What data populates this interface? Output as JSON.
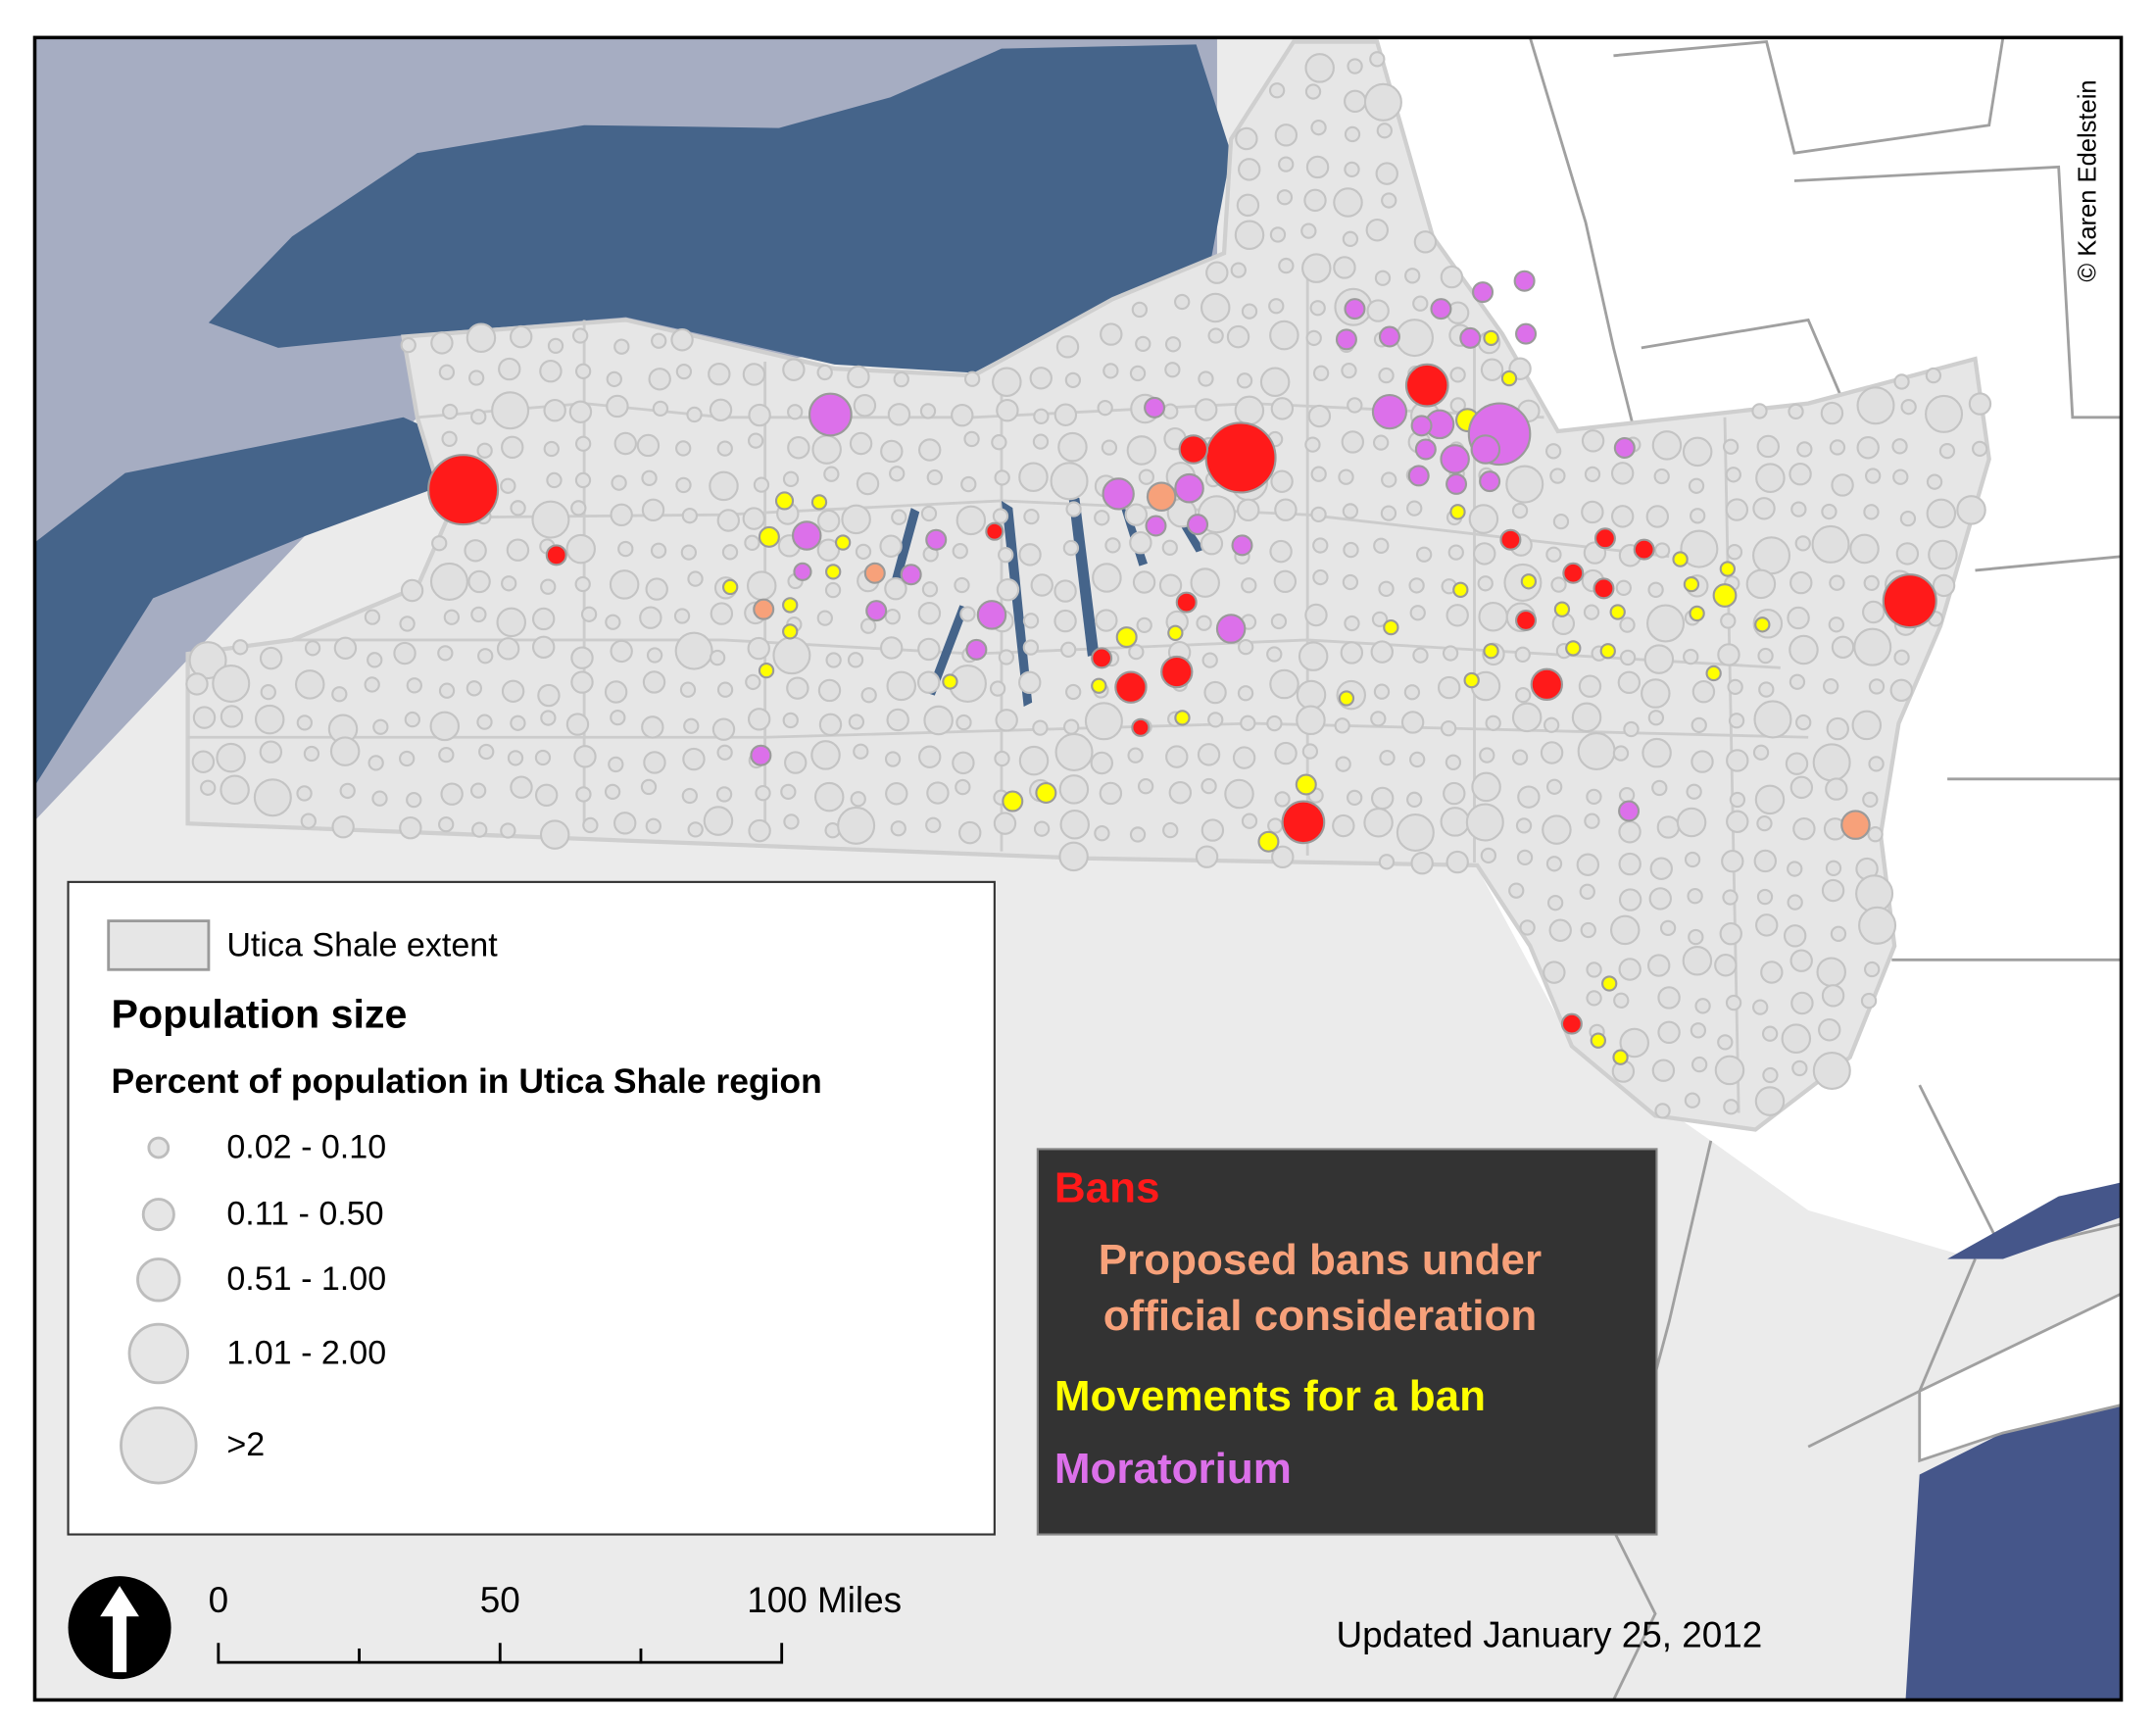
{
  "legend": {
    "shale_label": "Utica Shale extent",
    "title": "Population size",
    "subtitle": "Percent of population in Utica Shale region",
    "classes": [
      "0.02 - 0.10",
      "0.11 - 0.50",
      "0.51 - 1.00",
      "1.01 - 2.00",
      ">2"
    ]
  },
  "status_legend": [
    {
      "label": "Bans",
      "color": "#ff1a1a"
    },
    {
      "label": "Proposed bans under official consideration",
      "color": "#f7a17a"
    },
    {
      "label": "Movements for a ban",
      "color": "#ffff00"
    },
    {
      "label": "Moratorium",
      "color": "#dc70ea"
    }
  ],
  "scale_bar": {
    "ticks": [
      0,
      50,
      {
        "value": 100,
        "label": "100 Miles"
      }
    ]
  },
  "updated": "Updated January 25, 2012",
  "credit": "© Karen Edelstein"
}
